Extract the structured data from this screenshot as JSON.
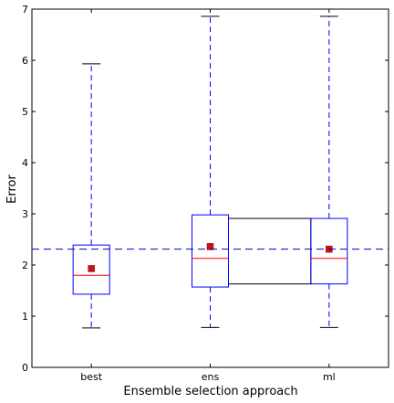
{
  "chart_data": {
    "type": "box",
    "xlabel": "Ensemble selection approach",
    "ylabel": "Error",
    "ylim": [
      0,
      7
    ],
    "yticks": [
      0,
      1,
      2,
      3,
      4,
      5,
      6,
      7
    ],
    "categories": [
      "best",
      "ens",
      "ml"
    ],
    "boxes": [
      {
        "label": "best",
        "whislo": 0.77,
        "q1": 1.43,
        "med": 1.8,
        "q3": 2.39,
        "whishi": 5.93,
        "mean": 1.93
      },
      {
        "label": "ens",
        "whislo": 0.78,
        "q1": 1.57,
        "med": 2.13,
        "q3": 2.98,
        "whishi": 6.86,
        "mean": 2.36
      },
      {
        "label": "ml",
        "whislo": 0.78,
        "q1": 1.63,
        "med": 2.13,
        "q3": 2.91,
        "whishi": 6.86,
        "mean": 2.31
      }
    ],
    "connector": {
      "from": "ens",
      "to": "ml",
      "low": 1.63,
      "high": 2.91
    },
    "reference_line": 2.31,
    "colors": {
      "box": "#0000ff",
      "median": "#ff0000",
      "mean": "#cc1111",
      "whisker": "#0000ff",
      "cap": "#000000",
      "reference": "#0000cc"
    }
  }
}
